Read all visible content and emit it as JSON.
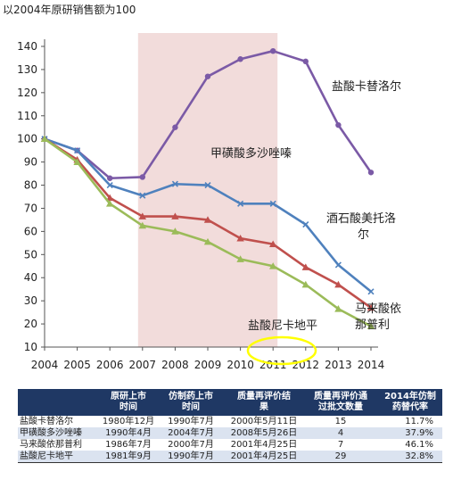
{
  "chart_data": {
    "type": "line",
    "title": "以2004年原研销售额为100",
    "x": [
      "2004",
      "2005",
      "2006",
      "2007",
      "2008",
      "2009",
      "2010",
      "2011",
      "2012",
      "2013",
      "2014"
    ],
    "ylim": [
      10,
      140
    ],
    "yticks": [
      10,
      20,
      30,
      40,
      50,
      60,
      70,
      80,
      90,
      100,
      110,
      120,
      130,
      140
    ],
    "highlight_x_range": [
      "2007",
      "2011"
    ],
    "grid": false,
    "series": [
      {
        "name": "盐酸卡替洛尔",
        "color": "#7b5aa6",
        "marker": "circle",
        "values": [
          100,
          95,
          83,
          83.5,
          105,
          127,
          134.5,
          138,
          133.5,
          106,
          85.5
        ]
      },
      {
        "name": "甲磺酸多沙唑嗪",
        "color": "#4f81bd",
        "marker": "x",
        "values": [
          100,
          95,
          80,
          75.5,
          80.5,
          80,
          72,
          72,
          63,
          45.5,
          34
        ]
      },
      {
        "name": "酒石酸美托洛尔",
        "color": "#c0504d",
        "marker": "triangle",
        "values": [
          100,
          91,
          74.5,
          66.5,
          66.5,
          65,
          57,
          54.5,
          44.5,
          37,
          27
        ]
      },
      {
        "name": "马来酸依那普利",
        "color": "#9bbb59",
        "marker": "triangle",
        "values": [
          100,
          90,
          72,
          62.5,
          60,
          55.5,
          48,
          45,
          37,
          26.5,
          19
        ]
      }
    ],
    "annotations": [
      {
        "text": "盐酸卡替洛尔"
      },
      {
        "text": "甲磺酸多沙唑嗪"
      },
      {
        "text": "酒石酸美托洛",
        "text2": "尔"
      },
      {
        "text": "马来酸依",
        "text2": "那普利"
      },
      {
        "text": "盐酸尼卡地平"
      }
    ]
  },
  "table": {
    "headers": [
      "",
      "原研上市\n时间",
      "仿制药上市\n时间",
      "质量再评价结\n果",
      "质量再评价通\n过批文数量",
      "2014年仿制\n药替代率"
    ],
    "rows": [
      [
        "盐酸卡替洛尔",
        "1980年12月",
        "1990年7月",
        "2000年5月11日",
        "15",
        "11.7%"
      ],
      [
        "甲磺酸多沙唑嗪",
        "1990年4月",
        "2004年7月",
        "2008年5月26日",
        "4",
        "37.9%"
      ],
      [
        "马来酸依那普利",
        "1986年7月",
        "2000年7月",
        "2001年4月25日",
        "7",
        "46.1%"
      ],
      [
        "盐酸尼卡地平",
        "1981年9月",
        "1990年7月",
        "2001年4月25日",
        "29",
        "32.8%"
      ]
    ]
  }
}
